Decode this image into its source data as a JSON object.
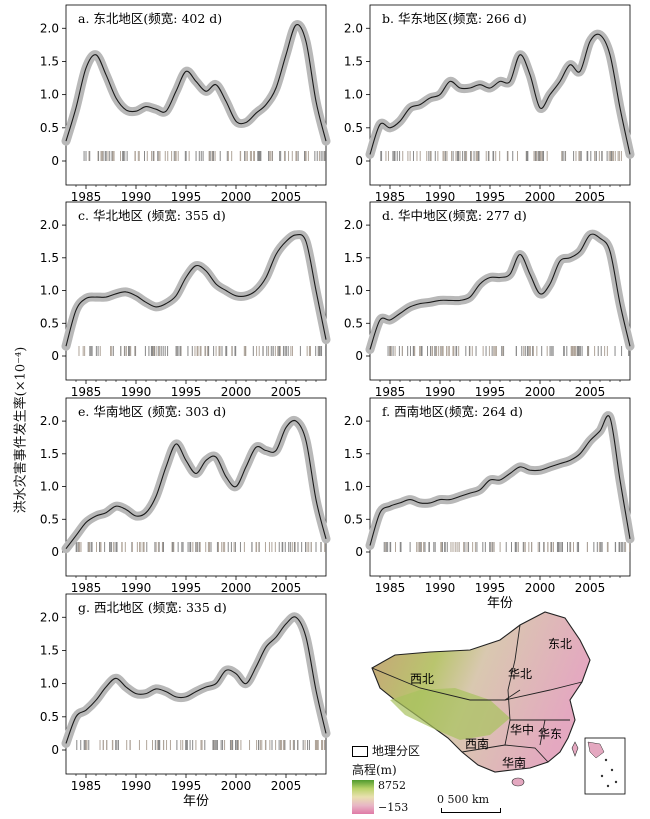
{
  "y_axis_label": "洪水灾害事件发生率(×10⁻⁴)",
  "chart_data": [
    {
      "type": "line",
      "title": "a. 东北地区(频宽: 402 d)",
      "ylim": [
        0,
        2.2
      ],
      "xlim": [
        1983,
        2009
      ],
      "yticks": [
        "0",
        "0.5",
        "1.0",
        "1.5",
        "2.0"
      ],
      "xticks": [
        "1985",
        "1990",
        "1995",
        "2000",
        "2005"
      ],
      "xlabel": "",
      "x": [
        1983,
        1984,
        1985,
        1986,
        1987,
        1988,
        1989,
        1990,
        1991,
        1992,
        1993,
        1994,
        1995,
        1996,
        1997,
        1998,
        1999,
        2000,
        2001,
        2002,
        2003,
        2004,
        2005,
        2006,
        2007,
        2008,
        2009
      ],
      "y": [
        0.3,
        0.8,
        1.4,
        1.6,
        1.3,
        0.95,
        0.77,
        0.75,
        0.82,
        0.78,
        0.75,
        1.05,
        1.35,
        1.2,
        1.05,
        1.15,
        0.9,
        0.6,
        0.58,
        0.72,
        0.85,
        1.1,
        1.6,
        2.05,
        1.8,
        0.9,
        0.3
      ]
    },
    {
      "type": "line",
      "title": "b. 华东地区(频宽: 266 d)",
      "ylim": [
        0,
        2.2
      ],
      "xlim": [
        1983,
        2009
      ],
      "yticks": [
        "0",
        "0.5",
        "1.0",
        "1.5",
        "2.0"
      ],
      "xticks": [
        "1985",
        "1990",
        "1995",
        "2000",
        "2005"
      ],
      "xlabel": "",
      "x": [
        1983,
        1984,
        1985,
        1986,
        1987,
        1988,
        1989,
        1990,
        1991,
        1992,
        1993,
        1994,
        1995,
        1996,
        1997,
        1998,
        1999,
        2000,
        2001,
        2002,
        2003,
        2004,
        2005,
        2006,
        2007,
        2008,
        2009
      ],
      "y": [
        0.1,
        0.55,
        0.5,
        0.6,
        0.8,
        0.85,
        0.95,
        1.0,
        1.2,
        1.1,
        1.1,
        1.15,
        1.1,
        1.2,
        1.2,
        1.6,
        1.3,
        0.8,
        1.0,
        1.2,
        1.45,
        1.35,
        1.8,
        1.9,
        1.6,
        0.8,
        0.1
      ]
    },
    {
      "type": "line",
      "title": "c. 华北地区 (频宽: 355 d)",
      "ylim": [
        0,
        2.2
      ],
      "xlim": [
        1983,
        2009
      ],
      "yticks": [
        "0",
        "0.5",
        "1.0",
        "1.5",
        "2.0"
      ],
      "xticks": [
        "1985",
        "1990",
        "1995",
        "2000",
        "2005"
      ],
      "xlabel": "",
      "x": [
        1983,
        1984,
        1985,
        1986,
        1987,
        1988,
        1989,
        1990,
        1991,
        1992,
        1993,
        1994,
        1995,
        1996,
        1997,
        1998,
        1999,
        2000,
        2001,
        2002,
        2003,
        2004,
        2005,
        2006,
        2007,
        2008,
        2009
      ],
      "y": [
        0.15,
        0.7,
        0.88,
        0.9,
        0.9,
        0.95,
        0.98,
        0.92,
        0.82,
        0.75,
        0.8,
        0.92,
        1.2,
        1.38,
        1.3,
        1.1,
        1.0,
        0.92,
        0.92,
        1.0,
        1.2,
        1.55,
        1.75,
        1.85,
        1.75,
        1.0,
        0.25
      ]
    },
    {
      "type": "line",
      "title": "d. 华中地区(频宽: 277 d)",
      "ylim": [
        0,
        2.2
      ],
      "xlim": [
        1983,
        2009
      ],
      "yticks": [
        "0",
        "0.5",
        "1.0",
        "1.5",
        "2.0"
      ],
      "xticks": [
        "1985",
        "1990",
        "1995",
        "2000",
        "2005"
      ],
      "xlabel": "",
      "x": [
        1983,
        1984,
        1985,
        1986,
        1987,
        1988,
        1989,
        1990,
        1991,
        1992,
        1993,
        1994,
        1995,
        1996,
        1997,
        1998,
        1999,
        2000,
        2001,
        2002,
        2003,
        2004,
        2005,
        2006,
        2007,
        2008,
        2009
      ],
      "y": [
        0.1,
        0.55,
        0.55,
        0.65,
        0.75,
        0.8,
        0.82,
        0.85,
        0.85,
        0.85,
        0.9,
        1.1,
        1.2,
        1.2,
        1.25,
        1.55,
        1.25,
        0.95,
        1.1,
        1.45,
        1.5,
        1.6,
        1.85,
        1.8,
        1.6,
        0.8,
        0.15
      ]
    },
    {
      "type": "line",
      "title": "e. 华南地区 (频宽: 303 d)",
      "ylim": [
        0,
        2.2
      ],
      "xlim": [
        1983,
        2009
      ],
      "yticks": [
        "0",
        "0.5",
        "1.0",
        "1.5",
        "2.0"
      ],
      "xticks": [
        "1985",
        "1990",
        "1995",
        "2000",
        "2005"
      ],
      "xlabel": "",
      "x": [
        1983,
        1984,
        1985,
        1986,
        1987,
        1988,
        1989,
        1990,
        1991,
        1992,
        1993,
        1994,
        1995,
        1996,
        1997,
        1998,
        1999,
        2000,
        2001,
        2002,
        2003,
        2004,
        2005,
        2006,
        2007,
        2008,
        2009
      ],
      "y": [
        0.05,
        0.25,
        0.45,
        0.55,
        0.6,
        0.7,
        0.65,
        0.55,
        0.6,
        0.85,
        1.3,
        1.65,
        1.4,
        1.2,
        1.4,
        1.45,
        1.15,
        1.0,
        1.3,
        1.6,
        1.55,
        1.55,
        1.9,
        2.0,
        1.7,
        0.8,
        0.2
      ]
    },
    {
      "type": "line",
      "title": "f. 西南地区(频宽: 264 d)",
      "ylim": [
        0,
        2.2
      ],
      "xlim": [
        1983,
        2009
      ],
      "yticks": [
        "0",
        "0.5",
        "1.0",
        "1.5",
        "2.0"
      ],
      "xticks": [
        "1985",
        "1990",
        "1995",
        "2000",
        "2005"
      ],
      "xlabel": "年份",
      "x": [
        1983,
        1984,
        1985,
        1986,
        1987,
        1988,
        1989,
        1990,
        1991,
        1992,
        1993,
        1994,
        1995,
        1996,
        1997,
        1998,
        1999,
        2000,
        2001,
        2002,
        2003,
        2004,
        2005,
        2006,
        2007,
        2008,
        2009
      ],
      "y": [
        0.1,
        0.6,
        0.7,
        0.75,
        0.8,
        0.75,
        0.75,
        0.8,
        0.8,
        0.85,
        0.9,
        0.95,
        1.1,
        1.1,
        1.2,
        1.3,
        1.25,
        1.25,
        1.3,
        1.35,
        1.4,
        1.5,
        1.7,
        1.85,
        2.05,
        1.1,
        0.2
      ]
    },
    {
      "type": "line",
      "title": "g. 西北地区 (频宽: 335 d)",
      "ylim": [
        0,
        2.2
      ],
      "xlim": [
        1983,
        2009
      ],
      "yticks": [
        "0",
        "0.5",
        "1.0",
        "1.5",
        "2.0"
      ],
      "xticks": [
        "1985",
        "1990",
        "1995",
        "2000",
        "2005"
      ],
      "xlabel": "年份",
      "x": [
        1983,
        1984,
        1985,
        1986,
        1987,
        1988,
        1989,
        1990,
        1991,
        1992,
        1993,
        1994,
        1995,
        1996,
        1997,
        1998,
        1999,
        2000,
        2001,
        2002,
        2003,
        2004,
        2005,
        2006,
        2007,
        2008,
        2009
      ],
      "y": [
        0.1,
        0.5,
        0.6,
        0.75,
        0.95,
        1.08,
        0.95,
        0.85,
        0.85,
        0.92,
        0.88,
        0.8,
        0.8,
        0.88,
        0.95,
        1.0,
        1.2,
        1.15,
        1.0,
        1.25,
        1.55,
        1.7,
        1.9,
        2.0,
        1.7,
        0.9,
        0.25
      ]
    }
  ],
  "map": {
    "regions": [
      "东北",
      "华北",
      "西北",
      "华中",
      "华东",
      "西南",
      "华南"
    ],
    "legend_label": "地理分区",
    "elevation_title": "高程(m)",
    "elevation_max": "8752",
    "elevation_min": "−153",
    "scale_label": "0  500 km",
    "colors": {
      "high": "#4f9a2d",
      "low": "#e07aa6"
    }
  }
}
